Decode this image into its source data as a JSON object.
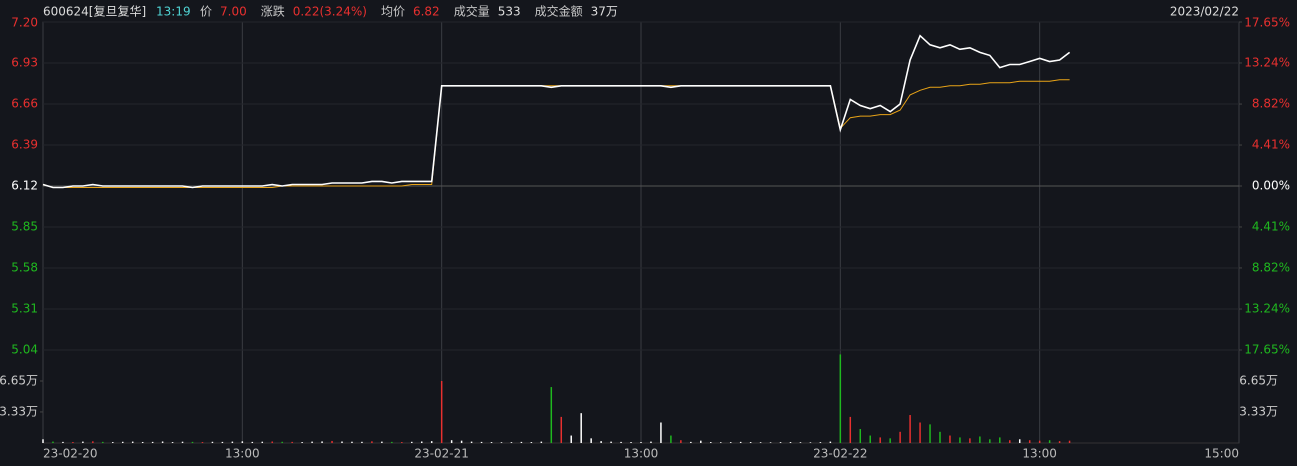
{
  "header": {
    "code": "600624[复旦复华]",
    "time": "13:19",
    "items": [
      {
        "label": "价",
        "value": "7.00"
      },
      {
        "label": "涨跌",
        "value": "0.22(3.24%)"
      },
      {
        "label": "均价",
        "value": "6.82"
      },
      {
        "label": "成交量",
        "value": "533"
      },
      {
        "label": "成交金额",
        "value": "37万"
      }
    ],
    "date": "2023/02/22"
  },
  "chart_data": {
    "type": "line",
    "x": [
      0,
      6,
      12,
      18,
      24,
      30,
      36,
      42,
      48,
      54,
      60,
      66,
      72,
      78,
      84,
      90,
      96,
      102,
      108,
      114,
      120,
      126,
      132,
      138,
      144,
      150,
      156,
      162,
      168,
      174,
      180,
      186,
      192,
      198,
      204,
      210,
      216,
      222,
      228,
      234,
      240,
      246,
      252,
      258,
      264,
      270,
      276,
      282,
      288,
      294,
      300,
      306,
      312,
      318,
      324,
      330,
      336,
      342,
      348,
      354,
      360,
      366,
      372,
      378,
      384,
      390,
      396,
      402,
      408,
      414,
      420,
      426,
      432,
      438,
      444,
      450,
      456,
      462,
      468,
      474,
      480,
      486,
      492,
      498,
      504,
      510,
      516,
      522,
      528,
      534,
      540,
      546,
      552,
      558,
      564,
      570,
      576,
      582,
      588,
      594,
      600,
      606,
      612,
      618
    ],
    "series": [
      {
        "color": "#ffffff",
        "values": [
          6.13,
          6.11,
          6.11,
          6.12,
          6.12,
          6.13,
          6.12,
          6.12,
          6.12,
          6.12,
          6.12,
          6.12,
          6.12,
          6.12,
          6.12,
          6.11,
          6.12,
          6.12,
          6.12,
          6.12,
          6.12,
          6.12,
          6.12,
          6.13,
          6.12,
          6.13,
          6.13,
          6.13,
          6.13,
          6.14,
          6.14,
          6.14,
          6.14,
          6.15,
          6.15,
          6.14,
          6.15,
          6.15,
          6.15,
          6.15,
          6.78,
          6.78,
          6.78,
          6.78,
          6.78,
          6.78,
          6.78,
          6.78,
          6.78,
          6.78,
          6.78,
          6.77,
          6.78,
          6.78,
          6.78,
          6.78,
          6.78,
          6.78,
          6.78,
          6.78,
          6.78,
          6.78,
          6.78,
          6.77,
          6.78,
          6.78,
          6.78,
          6.78,
          6.78,
          6.78,
          6.78,
          6.78,
          6.78,
          6.78,
          6.78,
          6.78,
          6.78,
          6.78,
          6.78,
          6.78,
          6.49,
          6.69,
          6.65,
          6.63,
          6.65,
          6.61,
          6.66,
          6.95,
          7.11,
          7.05,
          7.03,
          7.05,
          7.02,
          7.03,
          7.0,
          6.98,
          6.9,
          6.92,
          6.92,
          6.94,
          6.96,
          6.94,
          6.95,
          7.0
        ]
      },
      {
        "color": "#e8a317",
        "values": [
          6.13,
          6.11,
          6.11,
          6.11,
          6.11,
          6.11,
          6.11,
          6.11,
          6.11,
          6.11,
          6.11,
          6.11,
          6.11,
          6.11,
          6.11,
          6.11,
          6.11,
          6.11,
          6.11,
          6.11,
          6.11,
          6.11,
          6.11,
          6.11,
          6.12,
          6.12,
          6.12,
          6.12,
          6.12,
          6.12,
          6.12,
          6.12,
          6.12,
          6.12,
          6.12,
          6.12,
          6.12,
          6.13,
          6.13,
          6.13,
          6.78,
          6.78,
          6.78,
          6.78,
          6.78,
          6.78,
          6.78,
          6.78,
          6.78,
          6.78,
          6.78,
          6.78,
          6.78,
          6.78,
          6.78,
          6.78,
          6.78,
          6.78,
          6.78,
          6.78,
          6.78,
          6.78,
          6.78,
          6.78,
          6.78,
          6.78,
          6.78,
          6.78,
          6.78,
          6.78,
          6.78,
          6.78,
          6.78,
          6.78,
          6.78,
          6.78,
          6.78,
          6.78,
          6.78,
          6.78,
          6.5,
          6.57,
          6.58,
          6.58,
          6.59,
          6.59,
          6.62,
          6.72,
          6.75,
          6.77,
          6.77,
          6.78,
          6.78,
          6.79,
          6.79,
          6.8,
          6.8,
          6.8,
          6.81,
          6.81,
          6.81,
          6.81,
          6.82,
          6.82
        ]
      }
    ],
    "ylim": [
      5.04,
      7.2
    ],
    "yticks": [
      {
        "value": 7.2,
        "label": "7.20"
      },
      6.93,
      6.66,
      6.39,
      6.12,
      5.85,
      5.58,
      5.31,
      5.04
    ],
    "y2lim": [
      -17.65,
      17.65
    ],
    "y2ticks": [
      {
        "value": 17.65,
        "label": "17.65%"
      },
      {
        "value": 13.24,
        "label": "13.24%"
      },
      {
        "value": 8.82,
        "label": "8.82%"
      },
      {
        "value": 4.41,
        "label": "4.41%"
      },
      {
        "value": 0,
        "label": "0.00%"
      },
      {
        "value": -4.41,
        "label": "4.41%"
      },
      {
        "value": -8.82,
        "label": "8.82%"
      },
      {
        "value": -13.24,
        "label": "13.24%"
      },
      {
        "value": -17.65,
        "label": "17.65%"
      }
    ],
    "xlim": [
      0,
      720
    ],
    "xticks": [
      {
        "value": 0,
        "label": "23-02-20"
      },
      {
        "value": 120,
        "label": "13:00"
      },
      {
        "value": 240,
        "label": "23-02-21"
      },
      {
        "value": 360,
        "label": "13:00"
      },
      {
        "value": 480,
        "label": "23-02-22"
      },
      {
        "value": 600,
        "label": "13:00"
      },
      {
        "value": 720,
        "label": "15:00"
      }
    ],
    "up_color": "#e8302f",
    "down_color": "#1fb81f",
    "flat_color": "#ffffff",
    "volume": {
      "values": [
        4000,
        1500,
        1200,
        1000,
        1500,
        1800,
        1200,
        1000,
        1300,
        1500,
        1100,
        1200,
        1600,
        1000,
        1400,
        1200,
        1000,
        1300,
        1200,
        1500,
        1800,
        1200,
        1400,
        1600,
        1300,
        1200,
        1000,
        1500,
        1700,
        2200,
        1600,
        1400,
        1300,
        1800,
        1500,
        1200,
        1000,
        1300,
        1600,
        2000,
        66500,
        3000,
        2500,
        1500,
        1200,
        1000,
        800,
        900,
        1200,
        1000,
        1500,
        60000,
        28000,
        8000,
        32000,
        5000,
        2000,
        1500,
        1200,
        1000,
        1000,
        1500,
        22000,
        8000,
        3000,
        1200,
        2500,
        1000,
        800,
        900,
        1200,
        1000,
        800,
        700,
        900,
        1000,
        800,
        700,
        900,
        1500,
        95000,
        28000,
        15000,
        8000,
        6000,
        5000,
        12000,
        30000,
        22000,
        20000,
        12000,
        8000,
        6000,
        5000,
        7000,
        4000,
        6000,
        3000,
        4000,
        3000,
        2500,
        3000,
        2000,
        2500
      ],
      "ylim": [
        0,
        99750
      ],
      "yticks": [
        {
          "value": 66500,
          "label": "6.65万"
        },
        {
          "value": 33300,
          "label": "3.33万"
        }
      ]
    }
  }
}
